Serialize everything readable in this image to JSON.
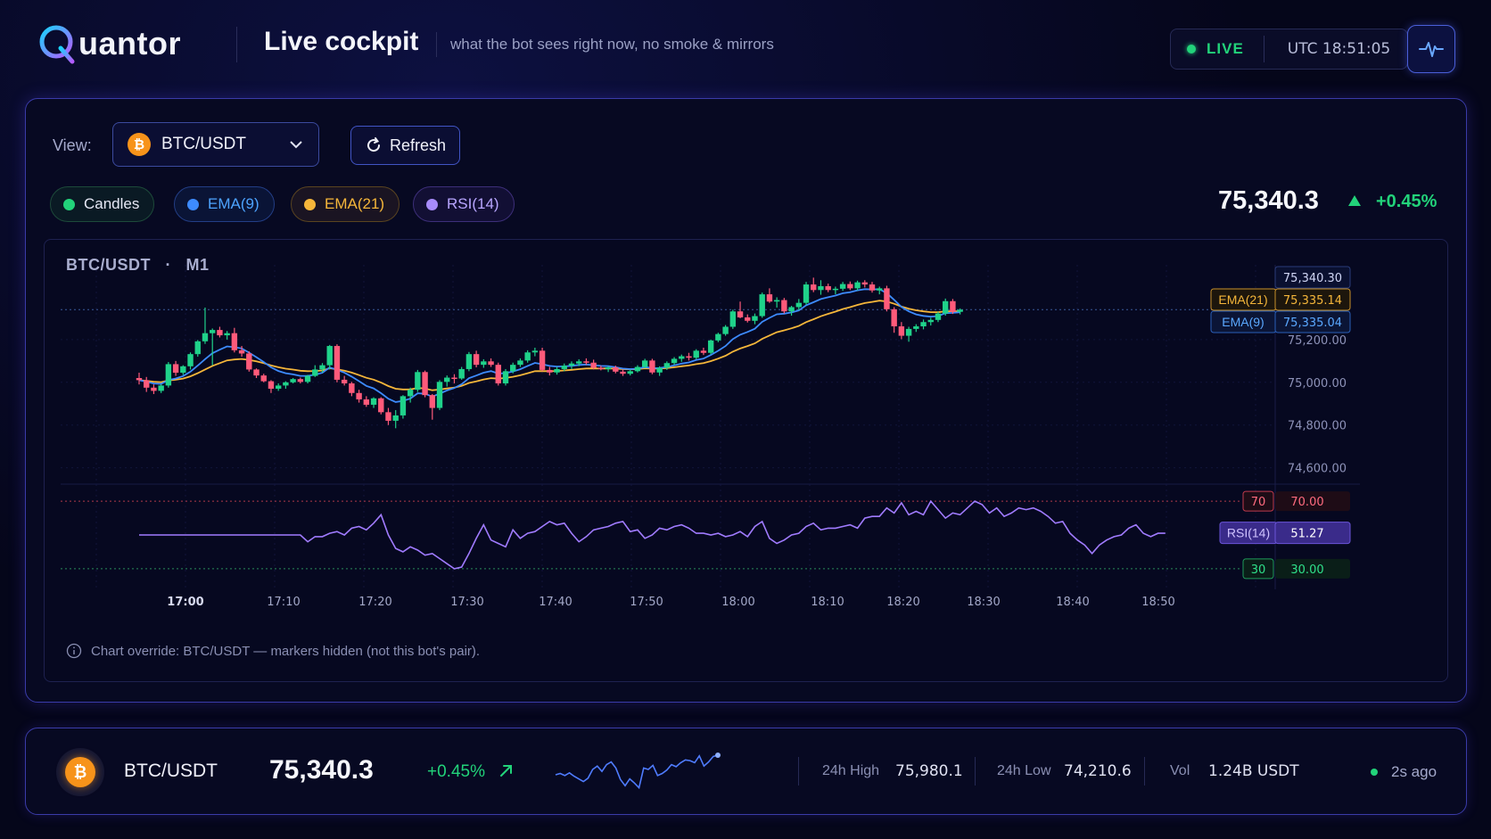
{
  "header": {
    "brand": "uantor",
    "title": "Live cockpit",
    "tagline": "what the bot sees right now, no smoke & mirrors",
    "status": "LIVE",
    "clock": "UTC 18:51:05"
  },
  "controls": {
    "view_label": "View:",
    "pair": "BTC/USDT",
    "coin_symbol": "₿",
    "refresh_label": "Refresh"
  },
  "toggles": [
    {
      "label": "Candles",
      "color": "#22d37a"
    },
    {
      "label": "EMA(9)",
      "color": "#3d8bff"
    },
    {
      "label": "EMA(21)",
      "color": "#f5b63a"
    },
    {
      "label": "RSI(14)",
      "color": "#a78bfa"
    }
  ],
  "ticker": {
    "price": "75,340.3",
    "change": "+0.45%"
  },
  "chart": {
    "title": "BTC/USDT",
    "timeframe": "M1",
    "note": "Chart override: BTC/USDT — markers hidden (not this bot's pair)."
  },
  "chart_data": {
    "type": "candlestick",
    "pair": "BTC/USDT",
    "timeframe": "M1",
    "x_ticks": [
      "17:00",
      "17:10",
      "17:20",
      "17:30",
      "17:40",
      "17:50",
      "18:00",
      "18:10",
      "18:20",
      "18:30",
      "18:40",
      "18:50"
    ],
    "y_ticks": [
      "75,200.00",
      "75,000.00",
      "74,800.00",
      "74,600.00"
    ],
    "y_tick_values": [
      75200,
      75000,
      74800,
      74600
    ],
    "ylim": [
      74540,
      75500
    ],
    "last_price_label": "75,340.30",
    "last_price": 75340.3,
    "indicators": [
      {
        "name": "EMA(21)",
        "value_label": "75,335.14",
        "value": 75335.14,
        "color": "#f5b63a"
      },
      {
        "name": "EMA(9)",
        "value_label": "75,335.04",
        "value": 75335.04,
        "color": "#3d8bff"
      }
    ],
    "rsi": {
      "name": "RSI(14)",
      "value_label": "51.27",
      "value": 51.27,
      "upper_tag": "70",
      "upper_label": "70.00",
      "lower_tag": "30",
      "lower_label": "30.00",
      "levels": [
        70,
        30
      ],
      "ylim": [
        22,
        78
      ],
      "series": [
        50,
        50,
        50,
        50,
        50,
        50,
        50,
        50,
        50,
        50,
        50,
        50,
        50,
        50,
        50,
        50,
        50,
        50,
        50,
        50,
        50,
        50,
        50,
        46,
        49,
        49,
        51,
        52,
        50,
        54,
        55,
        53,
        57,
        62,
        50,
        42,
        40,
        43,
        41,
        38,
        39,
        36,
        33,
        30,
        31,
        39,
        48,
        56,
        47,
        45,
        43,
        53,
        48,
        51,
        52,
        55,
        58,
        56,
        57,
        51,
        46,
        49,
        53,
        54,
        55,
        57,
        58,
        52,
        53,
        48,
        50,
        54,
        53,
        55,
        56,
        54,
        51,
        51,
        50,
        51,
        49,
        50,
        52,
        49,
        55,
        58,
        48,
        45,
        47,
        50,
        51,
        55,
        57,
        53,
        54,
        54,
        55,
        56,
        54,
        60,
        61,
        61,
        66,
        63,
        69,
        62,
        64,
        62,
        70,
        65,
        60,
        63,
        62,
        66,
        70,
        68,
        63,
        66,
        61,
        63,
        66,
        65,
        66,
        64,
        61,
        57,
        58,
        51,
        47,
        44,
        39,
        44,
        47,
        49,
        50,
        54,
        56,
        51,
        49,
        51,
        51
      ]
    },
    "candles": [
      {
        "o": 75020,
        "h": 75045,
        "l": 74990,
        "c": 75010
      },
      {
        "o": 75010,
        "h": 75025,
        "l": 74955,
        "c": 74975
      },
      {
        "o": 74975,
        "h": 74990,
        "l": 74945,
        "c": 74960
      },
      {
        "o": 74960,
        "h": 74990,
        "l": 74950,
        "c": 74985
      },
      {
        "o": 74985,
        "h": 75095,
        "l": 74975,
        "c": 75085
      },
      {
        "o": 75085,
        "h": 75100,
        "l": 75030,
        "c": 75045
      },
      {
        "o": 75045,
        "h": 75080,
        "l": 75035,
        "c": 75075
      },
      {
        "o": 75075,
        "h": 75140,
        "l": 75060,
        "c": 75132
      },
      {
        "o": 75132,
        "h": 75198,
        "l": 75120,
        "c": 75192
      },
      {
        "o": 75192,
        "h": 75350,
        "l": 75180,
        "c": 75230
      },
      {
        "o": 75230,
        "h": 75252,
        "l": 75080,
        "c": 75245
      },
      {
        "o": 75245,
        "h": 75260,
        "l": 75210,
        "c": 75220
      },
      {
        "o": 75220,
        "h": 75240,
        "l": 75200,
        "c": 75230
      },
      {
        "o": 75230,
        "h": 75255,
        "l": 75140,
        "c": 75150
      },
      {
        "o": 75150,
        "h": 75170,
        "l": 75120,
        "c": 75135
      },
      {
        "o": 75135,
        "h": 75145,
        "l": 75050,
        "c": 75060
      },
      {
        "o": 75060,
        "h": 75065,
        "l": 75020,
        "c": 75032
      },
      {
        "o": 75032,
        "h": 75040,
        "l": 75000,
        "c": 75005
      },
      {
        "o": 75005,
        "h": 75010,
        "l": 74950,
        "c": 74970
      },
      {
        "o": 74970,
        "h": 74995,
        "l": 74960,
        "c": 74985
      },
      {
        "o": 74985,
        "h": 75005,
        "l": 74970,
        "c": 75000
      },
      {
        "o": 75000,
        "h": 75020,
        "l": 74995,
        "c": 75015
      },
      {
        "o": 75015,
        "h": 75022,
        "l": 74995,
        "c": 75002
      },
      {
        "o": 75002,
        "h": 75035,
        "l": 74995,
        "c": 75030
      },
      {
        "o": 75030,
        "h": 75080,
        "l": 75025,
        "c": 75060
      },
      {
        "o": 75060,
        "h": 75090,
        "l": 75045,
        "c": 75080
      },
      {
        "o": 75080,
        "h": 75175,
        "l": 75060,
        "c": 75170
      },
      {
        "o": 75170,
        "h": 75178,
        "l": 75000,
        "c": 75012
      },
      {
        "o": 75012,
        "h": 75030,
        "l": 74985,
        "c": 74995
      },
      {
        "o": 74995,
        "h": 75002,
        "l": 74935,
        "c": 74950
      },
      {
        "o": 74950,
        "h": 74965,
        "l": 74905,
        "c": 74920
      },
      {
        "o": 74920,
        "h": 74935,
        "l": 74885,
        "c": 74895
      },
      {
        "o": 74895,
        "h": 74930,
        "l": 74880,
        "c": 74925
      },
      {
        "o": 74925,
        "h": 74930,
        "l": 74850,
        "c": 74860
      },
      {
        "o": 74860,
        "h": 74880,
        "l": 74800,
        "c": 74820
      },
      {
        "o": 74820,
        "h": 74870,
        "l": 74785,
        "c": 74845
      },
      {
        "o": 74845,
        "h": 74940,
        "l": 74830,
        "c": 74935
      },
      {
        "o": 74935,
        "h": 74975,
        "l": 74905,
        "c": 74965
      },
      {
        "o": 74965,
        "h": 75058,
        "l": 74955,
        "c": 75048
      },
      {
        "o": 75048,
        "h": 75055,
        "l": 74930,
        "c": 74940
      },
      {
        "o": 74940,
        "h": 74945,
        "l": 74825,
        "c": 74880
      },
      {
        "o": 74880,
        "h": 75010,
        "l": 74870,
        "c": 75002
      },
      {
        "o": 75002,
        "h": 75032,
        "l": 74980,
        "c": 75022
      },
      {
        "o": 75022,
        "h": 75038,
        "l": 74995,
        "c": 75018
      },
      {
        "o": 75018,
        "h": 75072,
        "l": 75012,
        "c": 75062
      },
      {
        "o": 75062,
        "h": 75142,
        "l": 75052,
        "c": 75132
      },
      {
        "o": 75132,
        "h": 75148,
        "l": 75070,
        "c": 75082
      },
      {
        "o": 75082,
        "h": 75108,
        "l": 75068,
        "c": 75098
      },
      {
        "o": 75098,
        "h": 75112,
        "l": 75072,
        "c": 75082
      },
      {
        "o": 75082,
        "h": 75092,
        "l": 74985,
        "c": 74995
      },
      {
        "o": 74995,
        "h": 75062,
        "l": 74985,
        "c": 75052
      },
      {
        "o": 75052,
        "h": 75092,
        "l": 75042,
        "c": 75082
      },
      {
        "o": 75082,
        "h": 75112,
        "l": 75072,
        "c": 75102
      },
      {
        "o": 75102,
        "h": 75150,
        "l": 75092,
        "c": 75140
      },
      {
        "o": 75140,
        "h": 75162,
        "l": 75122,
        "c": 75148
      },
      {
        "o": 75148,
        "h": 75162,
        "l": 75052,
        "c": 75058
      },
      {
        "o": 75058,
        "h": 75072,
        "l": 75032,
        "c": 75046
      },
      {
        "o": 75046,
        "h": 75072,
        "l": 75036,
        "c": 75062
      },
      {
        "o": 75062,
        "h": 75088,
        "l": 75052,
        "c": 75078
      },
      {
        "o": 75078,
        "h": 75098,
        "l": 75062,
        "c": 75088
      },
      {
        "o": 75088,
        "h": 75108,
        "l": 75076,
        "c": 75098
      },
      {
        "o": 75098,
        "h": 75112,
        "l": 75082,
        "c": 75092
      },
      {
        "o": 75092,
        "h": 75106,
        "l": 75060,
        "c": 75068
      },
      {
        "o": 75068,
        "h": 75078,
        "l": 75056,
        "c": 75062
      },
      {
        "o": 75062,
        "h": 75076,
        "l": 75048,
        "c": 75070
      },
      {
        "o": 75070,
        "h": 75078,
        "l": 75042,
        "c": 75050
      },
      {
        "o": 75050,
        "h": 75060,
        "l": 75030,
        "c": 75040
      },
      {
        "o": 75040,
        "h": 75060,
        "l": 75032,
        "c": 75052
      },
      {
        "o": 75052,
        "h": 75080,
        "l": 75046,
        "c": 75072
      },
      {
        "o": 75072,
        "h": 75110,
        "l": 75066,
        "c": 75102
      },
      {
        "o": 75102,
        "h": 75110,
        "l": 75038,
        "c": 75046
      },
      {
        "o": 75046,
        "h": 75075,
        "l": 75030,
        "c": 75068
      },
      {
        "o": 75068,
        "h": 75098,
        "l": 75058,
        "c": 75090
      },
      {
        "o": 75090,
        "h": 75118,
        "l": 75082,
        "c": 75110
      },
      {
        "o": 75110,
        "h": 75130,
        "l": 75096,
        "c": 75122
      },
      {
        "o": 75122,
        "h": 75138,
        "l": 75102,
        "c": 75115
      },
      {
        "o": 75115,
        "h": 75155,
        "l": 75108,
        "c": 75148
      },
      {
        "o": 75148,
        "h": 75162,
        "l": 75128,
        "c": 75138
      },
      {
        "o": 75138,
        "h": 75200,
        "l": 75130,
        "c": 75196
      },
      {
        "o": 75196,
        "h": 75232,
        "l": 75188,
        "c": 75226
      },
      {
        "o": 75226,
        "h": 75268,
        "l": 75218,
        "c": 75260
      },
      {
        "o": 75260,
        "h": 75340,
        "l": 75250,
        "c": 75332
      },
      {
        "o": 75332,
        "h": 75378,
        "l": 75300,
        "c": 75304
      },
      {
        "o": 75304,
        "h": 75318,
        "l": 75280,
        "c": 75288
      },
      {
        "o": 75288,
        "h": 75322,
        "l": 75272,
        "c": 75310
      },
      {
        "o": 75310,
        "h": 75420,
        "l": 75302,
        "c": 75412
      },
      {
        "o": 75412,
        "h": 75440,
        "l": 75372,
        "c": 75378
      },
      {
        "o": 75378,
        "h": 75398,
        "l": 75350,
        "c": 75385
      },
      {
        "o": 75385,
        "h": 75395,
        "l": 75322,
        "c": 75332
      },
      {
        "o": 75332,
        "h": 75358,
        "l": 75312,
        "c": 75352
      },
      {
        "o": 75352,
        "h": 75390,
        "l": 75338,
        "c": 75372
      },
      {
        "o": 75372,
        "h": 75470,
        "l": 75362,
        "c": 75458
      },
      {
        "o": 75458,
        "h": 75490,
        "l": 75422,
        "c": 75432
      },
      {
        "o": 75432,
        "h": 75478,
        "l": 75410,
        "c": 75450
      },
      {
        "o": 75450,
        "h": 75462,
        "l": 75422,
        "c": 75432
      },
      {
        "o": 75432,
        "h": 75448,
        "l": 75412,
        "c": 75438
      },
      {
        "o": 75438,
        "h": 75470,
        "l": 75428,
        "c": 75460
      },
      {
        "o": 75460,
        "h": 75472,
        "l": 75432,
        "c": 75440
      },
      {
        "o": 75440,
        "h": 75476,
        "l": 75430,
        "c": 75468
      },
      {
        "o": 75468,
        "h": 75478,
        "l": 75444,
        "c": 75458
      },
      {
        "o": 75458,
        "h": 75470,
        "l": 75420,
        "c": 75430
      },
      {
        "o": 75430,
        "h": 75448,
        "l": 75412,
        "c": 75440
      },
      {
        "o": 75440,
        "h": 75452,
        "l": 75332,
        "c": 75342
      },
      {
        "o": 75342,
        "h": 75352,
        "l": 75232,
        "c": 75262
      },
      {
        "o": 75262,
        "h": 75282,
        "l": 75202,
        "c": 75218
      },
      {
        "o": 75218,
        "h": 75260,
        "l": 75190,
        "c": 75250
      },
      {
        "o": 75250,
        "h": 75272,
        "l": 75236,
        "c": 75262
      },
      {
        "o": 75262,
        "h": 75294,
        "l": 75248,
        "c": 75282
      },
      {
        "o": 75282,
        "h": 75302,
        "l": 75266,
        "c": 75292
      },
      {
        "o": 75292,
        "h": 75330,
        "l": 75282,
        "c": 75322
      },
      {
        "o": 75322,
        "h": 75392,
        "l": 75312,
        "c": 75380
      },
      {
        "o": 75380,
        "h": 75390,
        "l": 75320,
        "c": 75330
      },
      {
        "o": 75330,
        "h": 75346,
        "l": 75318,
        "c": 75340
      }
    ]
  },
  "footer": {
    "coin_symbol": "₿",
    "pair": "BTC/USDT",
    "price": "75,340.3",
    "change": "+0.45%",
    "sparkline": [
      0.42,
      0.46,
      0.4,
      0.48,
      0.38,
      0.3,
      0.22,
      0.32,
      0.58,
      0.68,
      0.52,
      0.72,
      0.8,
      0.62,
      0.28,
      0.1,
      0.3,
      0.18,
      0.04,
      0.62,
      0.58,
      0.7,
      0.4,
      0.46,
      0.56,
      0.72,
      0.66,
      0.78,
      0.86,
      0.84,
      0.78,
      0.98,
      0.68,
      0.8,
      0.96,
      1.0
    ],
    "high_label": "24h High",
    "high_value": "75,980.1",
    "low_label": "24h Low",
    "low_value": "74,210.6",
    "vol_label": "Vol",
    "vol_value": "1.24B USDT",
    "updated": "2s ago"
  }
}
